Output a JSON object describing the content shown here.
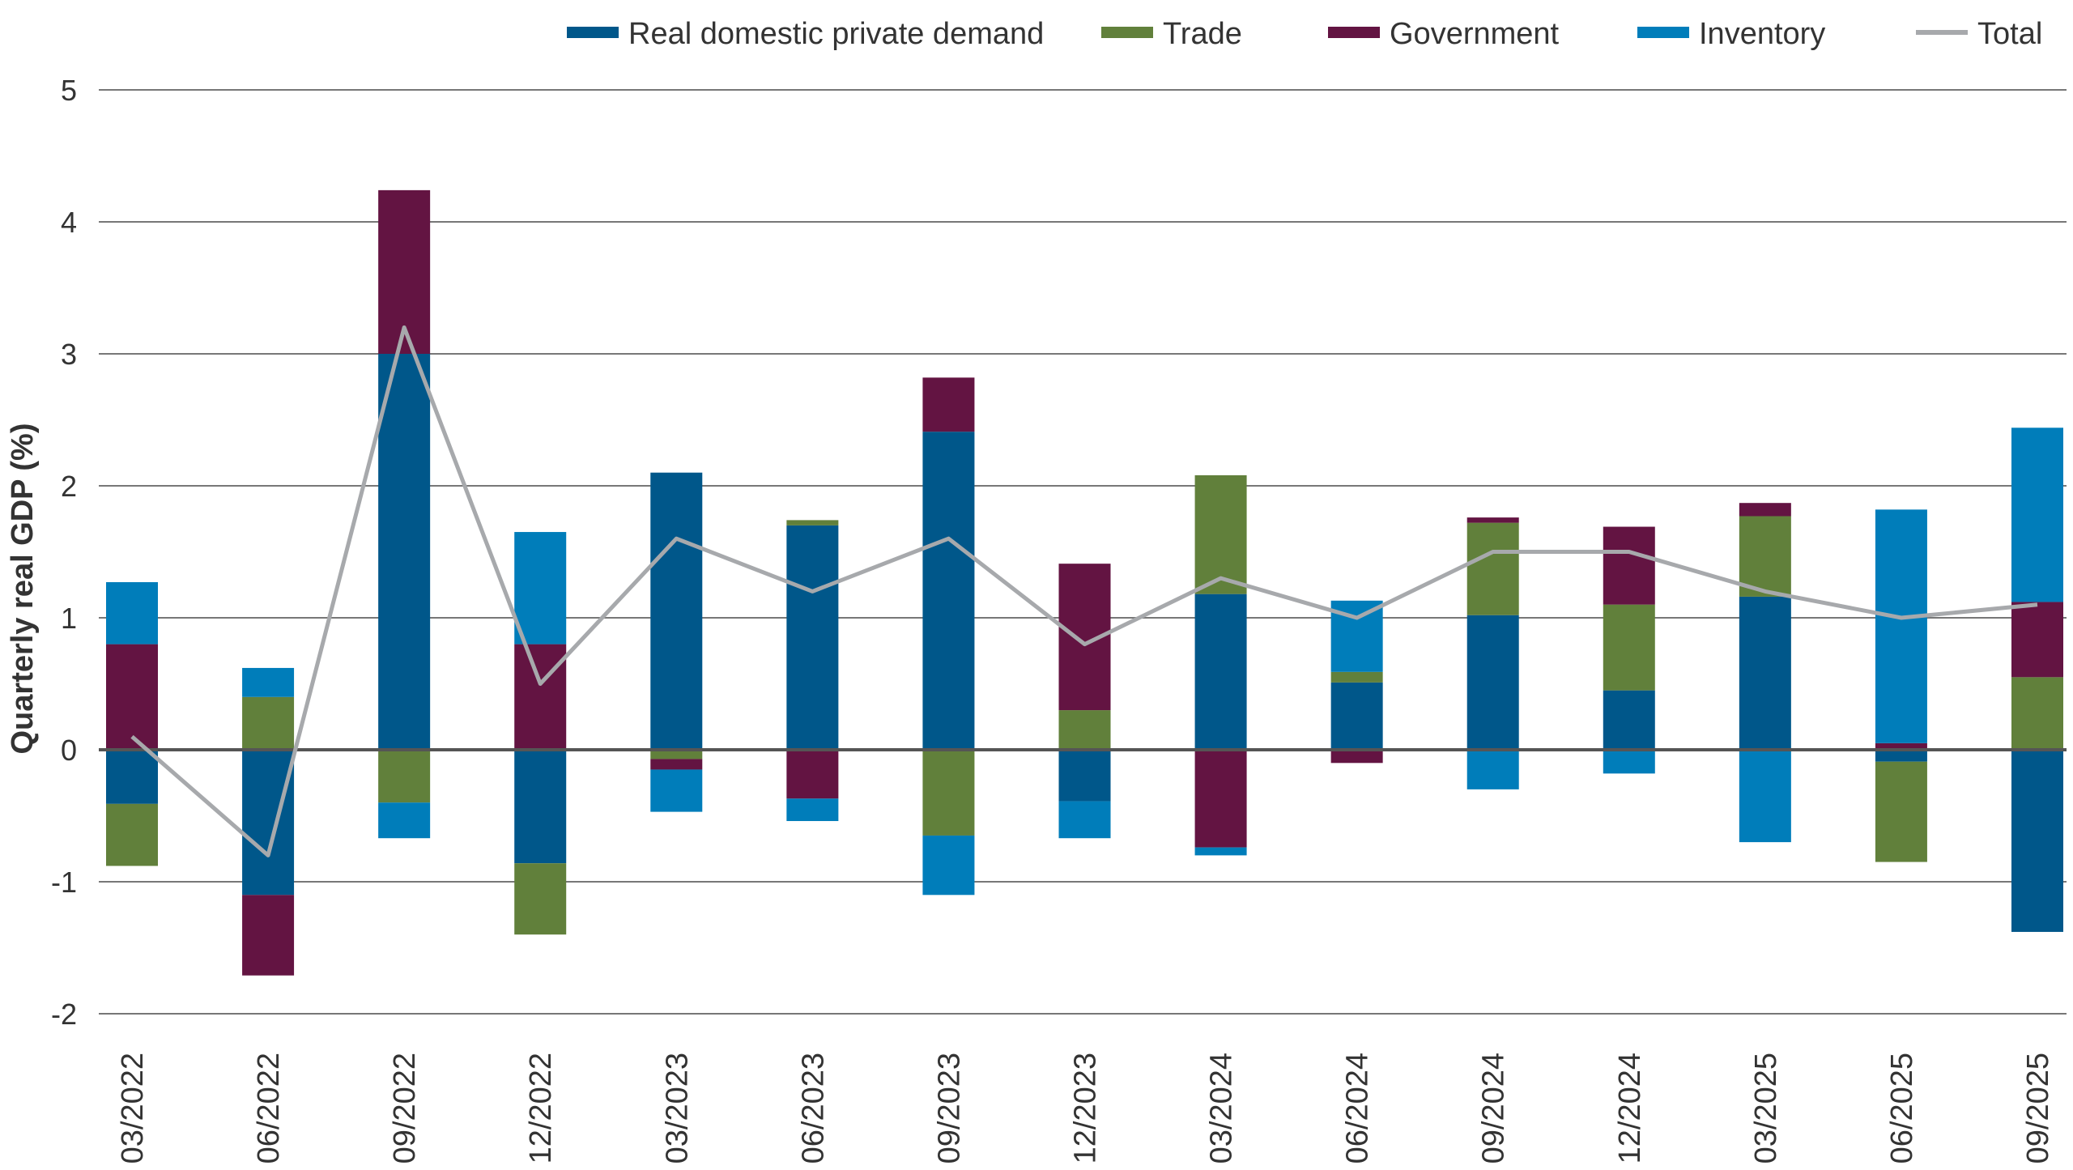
{
  "chart_data": {
    "type": "bar",
    "stacked": true,
    "title": "",
    "xlabel": "",
    "ylabel": "Quarterly real GDP (%)",
    "ylim": [
      -2,
      5
    ],
    "yticks": [
      5,
      4,
      3,
      2,
      1,
      0,
      -1,
      -2
    ],
    "grid": true,
    "legend_position": "top",
    "categories": [
      "03/2022",
      "06/2022",
      "09/2022",
      "12/2022",
      "03/2023",
      "06/2023",
      "09/2023",
      "12/2023",
      "03/2024",
      "06/2024",
      "09/2024",
      "12/2024",
      "03/2025",
      "06/2025",
      "09/2025"
    ],
    "series": [
      {
        "name": "Real domestic private demand",
        "kind": "bar",
        "color": "#00578a",
        "values": [
          -0.41,
          -1.1,
          3.0,
          -0.86,
          2.1,
          1.7,
          2.41,
          -0.39,
          1.18,
          0.51,
          1.02,
          0.45,
          1.16,
          -0.09,
          -1.38
        ]
      },
      {
        "name": "Trade",
        "kind": "bar",
        "color": "#61803b",
        "values": [
          -0.47,
          0.4,
          -0.4,
          -0.54,
          -0.07,
          0.04,
          -0.65,
          0.3,
          0.9,
          0.08,
          0.7,
          0.65,
          0.61,
          -0.76,
          0.55
        ]
      },
      {
        "name": "Government",
        "kind": "bar",
        "color": "#631442",
        "values": [
          0.8,
          -0.61,
          1.24,
          0.8,
          -0.08,
          -0.37,
          0.41,
          1.11,
          -0.74,
          -0.1,
          0.04,
          0.59,
          0.1,
          0.05,
          0.57
        ]
      },
      {
        "name": "Inventory",
        "kind": "bar",
        "color": "#007dba",
        "values": [
          0.47,
          0.22,
          -0.27,
          0.85,
          -0.32,
          -0.17,
          -0.45,
          -0.28,
          -0.06,
          0.54,
          -0.3,
          -0.18,
          -0.7,
          1.77,
          1.32
        ]
      },
      {
        "name": "Total",
        "kind": "line",
        "color": "#a7a9ac",
        "values": [
          0.1,
          -0.8,
          3.2,
          0.5,
          1.6,
          1.2,
          1.6,
          0.8,
          1.3,
          1.0,
          1.5,
          1.5,
          1.2,
          1.0,
          1.1
        ]
      }
    ]
  }
}
